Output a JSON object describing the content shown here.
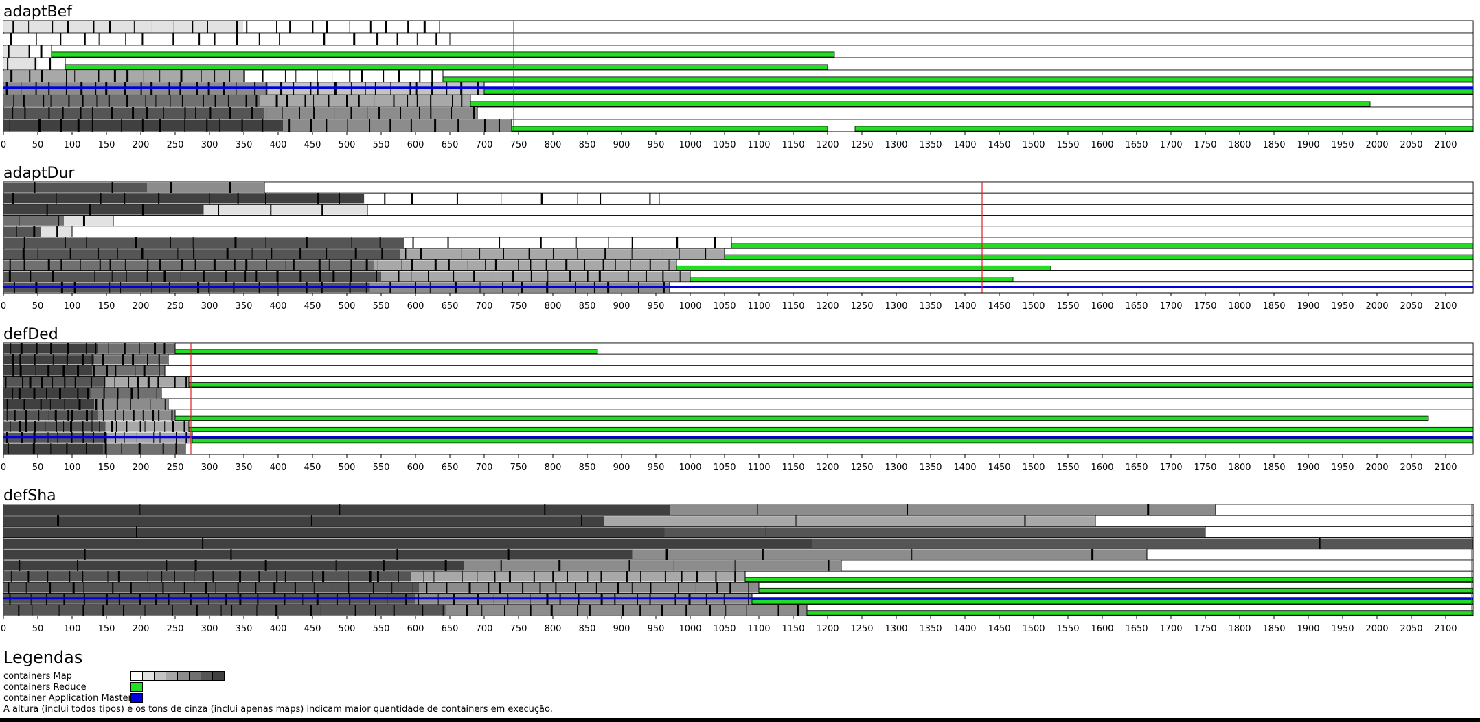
{
  "colors": {
    "map_shades": [
      "#ffffff",
      "#e2e2e2",
      "#c4c4c4",
      "#a8a8a8",
      "#8c8c8c",
      "#707070",
      "#555555",
      "#404040"
    ],
    "reduce": "#22dd22",
    "app_master": "#0000dd",
    "finish_line": "#e02020",
    "border": "#000000"
  },
  "chart_data": [
    {
      "type": "timeline",
      "title": "adaptBef",
      "xlim": [
        0,
        2140
      ],
      "x_ticks": [
        0,
        50,
        100,
        150,
        200,
        250,
        300,
        350,
        400,
        450,
        500,
        550,
        600,
        650,
        700,
        750,
        800,
        850,
        900,
        950,
        1000,
        1050,
        1100,
        1150,
        1200,
        1250,
        1300,
        1350,
        1400,
        1450,
        1500,
        1550,
        1600,
        1650,
        1700,
        1750,
        1800,
        1850,
        1900,
        1950,
        2000,
        2050,
        2100
      ],
      "finish_time": 743,
      "rows": [
        {
          "map_until": 635,
          "map_shade": 1,
          "map_shade_late": 0,
          "ticks": 22,
          "reduce": [],
          "am": []
        },
        {
          "map_until": 650,
          "map_shade": 0,
          "map_shade_late": 0,
          "ticks": 20,
          "reduce": [],
          "am": []
        },
        {
          "map_until": 70,
          "map_shade": 1,
          "map_shade_late": 0,
          "ticks": 3,
          "reduce": [
            [
              70,
              1210
            ]
          ],
          "am": []
        },
        {
          "map_until": 90,
          "map_shade": 1,
          "map_shade_late": 0,
          "ticks": 3,
          "reduce": [
            [
              90,
              1200
            ]
          ],
          "am": []
        },
        {
          "map_until": 640,
          "map_shade": 3,
          "map_shade_late": 0,
          "ticks": 26,
          "reduce": [
            [
              640,
              2140
            ]
          ],
          "am": []
        },
        {
          "map_until": 700,
          "map_shade": 4,
          "map_shade_late": 2,
          "ticks": 34,
          "reduce": [
            [
              700,
              2140
            ]
          ],
          "am": [
            [
              0,
              2140
            ]
          ]
        },
        {
          "map_until": 680,
          "map_shade": 5,
          "map_shade_late": 3,
          "ticks": 32,
          "reduce": [
            [
              680,
              1990
            ]
          ],
          "am": []
        },
        {
          "map_until": 690,
          "map_shade": 6,
          "map_shade_late": 4,
          "ticks": 28,
          "reduce": [],
          "am": []
        },
        {
          "map_until": 740,
          "map_shade": 7,
          "map_shade_late": 4,
          "ticks": 24,
          "reduce": [
            [
              740,
              1200
            ],
            [
              1240,
              2140
            ]
          ],
          "am": []
        }
      ]
    },
    {
      "type": "timeline",
      "title": "adaptDur",
      "xlim": [
        0,
        2140
      ],
      "x_ticks": [
        0,
        50,
        100,
        150,
        200,
        250,
        300,
        350,
        400,
        450,
        500,
        550,
        600,
        650,
        700,
        750,
        800,
        850,
        900,
        950,
        1000,
        1050,
        1100,
        1150,
        1200,
        1250,
        1300,
        1350,
        1400,
        1450,
        1500,
        1550,
        1600,
        1650,
        1700,
        1750,
        1800,
        1850,
        1900,
        1950,
        2000,
        2050,
        2100
      ],
      "finish_time": 1425,
      "rows": [
        {
          "map_until": 380,
          "map_shade": 6,
          "map_shade_late": 4,
          "ticks": 4,
          "reduce": [],
          "am": []
        },
        {
          "map_until": 955,
          "map_shade": 7,
          "map_shade_late": 0,
          "ticks": 18,
          "reduce": [],
          "am": []
        },
        {
          "map_until": 530,
          "map_shade": 7,
          "map_shade_late": 1,
          "ticks": 6,
          "reduce": [],
          "am": []
        },
        {
          "map_until": 160,
          "map_shade": 5,
          "map_shade_late": 1,
          "ticks": 3,
          "reduce": [],
          "am": []
        },
        {
          "map_until": 100,
          "map_shade": 6,
          "map_shade_late": 1,
          "ticks": 3,
          "reduce": [],
          "am": []
        },
        {
          "map_until": 1060,
          "map_shade": 6,
          "map_shade_late": 0,
          "ticks": 20,
          "reduce": [
            [
              1060,
              2140
            ]
          ],
          "am": []
        },
        {
          "map_until": 1050,
          "map_shade": 6,
          "map_shade_late": 3,
          "ticks": 28,
          "reduce": [
            [
              1050,
              2140
            ]
          ],
          "am": []
        },
        {
          "map_until": 980,
          "map_shade": 5,
          "map_shade_late": 3,
          "ticks": 40,
          "reduce": [
            [
              980,
              1525
            ]
          ],
          "am": []
        },
        {
          "map_until": 1000,
          "map_shade": 6,
          "map_shade_late": 3,
          "ticks": 36,
          "reduce": [
            [
              1000,
              1470
            ]
          ],
          "am": []
        },
        {
          "map_until": 970,
          "map_shade": 6,
          "map_shade_late": 4,
          "ticks": 30,
          "reduce": [],
          "am": [
            [
              0,
              2140
            ]
          ]
        }
      ]
    },
    {
      "type": "timeline",
      "title": "defDed",
      "xlim": [
        0,
        2140
      ],
      "x_ticks": [
        0,
        50,
        100,
        150,
        200,
        250,
        300,
        350,
        400,
        450,
        500,
        550,
        600,
        650,
        700,
        750,
        800,
        850,
        900,
        950,
        1000,
        1050,
        1100,
        1150,
        1200,
        1250,
        1300,
        1350,
        1400,
        1450,
        1500,
        1550,
        1600,
        1650,
        1700,
        1750,
        1800,
        1850,
        1900,
        1950,
        2000,
        2050,
        2100
      ],
      "finish_time": 273,
      "rows": [
        {
          "map_until": 250,
          "map_shade": 7,
          "map_shade_late": 5,
          "ticks": 12,
          "reduce": [
            [
              250,
              865
            ]
          ],
          "am": []
        },
        {
          "map_until": 240,
          "map_shade": 7,
          "map_shade_late": 5,
          "ticks": 12,
          "reduce": [],
          "am": []
        },
        {
          "map_until": 235,
          "map_shade": 7,
          "map_shade_late": 5,
          "ticks": 12,
          "reduce": [],
          "am": []
        },
        {
          "map_until": 270,
          "map_shade": 6,
          "map_shade_late": 3,
          "ticks": 16,
          "reduce": [
            [
              270,
              2140
            ]
          ],
          "am": []
        },
        {
          "map_until": 230,
          "map_shade": 7,
          "map_shade_late": 5,
          "ticks": 12,
          "reduce": [],
          "am": []
        },
        {
          "map_until": 240,
          "map_shade": 7,
          "map_shade_late": 4,
          "ticks": 12,
          "reduce": [],
          "am": []
        },
        {
          "map_until": 250,
          "map_shade": 6,
          "map_shade_late": 4,
          "ticks": 18,
          "reduce": [
            [
              250,
              2075
            ]
          ],
          "am": []
        },
        {
          "map_until": 270,
          "map_shade": 6,
          "map_shade_late": 3,
          "ticks": 20,
          "reduce": [
            [
              270,
              2140
            ]
          ],
          "am": []
        },
        {
          "map_until": 275,
          "map_shade": 6,
          "map_shade_late": 3,
          "ticks": 16,
          "reduce": [
            [
              275,
              2140
            ]
          ],
          "am": [
            [
              0,
              2140
            ]
          ]
        },
        {
          "map_until": 265,
          "map_shade": 7,
          "map_shade_late": 5,
          "ticks": 10,
          "reduce": [],
          "am": []
        }
      ]
    },
    {
      "type": "timeline",
      "title": "defSha",
      "xlim": [
        0,
        2140
      ],
      "x_ticks": [
        0,
        50,
        100,
        150,
        200,
        250,
        300,
        350,
        400,
        450,
        500,
        550,
        600,
        650,
        700,
        750,
        800,
        850,
        900,
        950,
        1000,
        1050,
        1100,
        1150,
        1200,
        1250,
        1300,
        1350,
        1400,
        1450,
        1500,
        1550,
        1600,
        1650,
        1700,
        1750,
        1800,
        1850,
        1900,
        1950,
        2000,
        2050,
        2100
      ],
      "finish_time": 2138,
      "rows": [
        {
          "map_until": 1765,
          "map_shade": 7,
          "map_shade_late": 4,
          "ticks": 6,
          "reduce": [],
          "am": []
        },
        {
          "map_until": 1590,
          "map_shade": 7,
          "map_shade_late": 3,
          "ticks": 5,
          "reduce": [],
          "am": []
        },
        {
          "map_until": 1750,
          "map_shade": 7,
          "map_shade_late": 6,
          "ticks": 2,
          "reduce": [],
          "am": []
        },
        {
          "map_until": 2140,
          "map_shade": 7,
          "map_shade_late": 6,
          "ticks": 2,
          "reduce": [],
          "am": []
        },
        {
          "map_until": 1665,
          "map_shade": 7,
          "map_shade_late": 4,
          "ticks": 8,
          "reduce": [],
          "am": []
        },
        {
          "map_until": 1220,
          "map_shade": 7,
          "map_shade_late": 4,
          "ticks": 14,
          "reduce": [],
          "am": []
        },
        {
          "map_until": 1080,
          "map_shade": 6,
          "map_shade_late": 3,
          "ticks": 40,
          "reduce": [
            [
              1080,
              2140
            ]
          ],
          "am": []
        },
        {
          "map_until": 1100,
          "map_shade": 6,
          "map_shade_late": 4,
          "ticks": 40,
          "reduce": [
            [
              1100,
              2140
            ]
          ],
          "am": []
        },
        {
          "map_until": 1090,
          "map_shade": 6,
          "map_shade_late": 4,
          "ticks": 42,
          "reduce": [
            [
              1090,
              2140
            ]
          ],
          "am": [
            [
              0,
              2140
            ]
          ]
        },
        {
          "map_until": 1170,
          "map_shade": 6,
          "map_shade_late": 4,
          "ticks": 36,
          "reduce": [
            [
              1170,
              2140
            ]
          ],
          "am": []
        }
      ]
    }
  ],
  "legend": {
    "heading": "Legendas",
    "map_label": "containers Map",
    "reduce_label": "containers Reduce",
    "am_label": "container Application Master",
    "note": "A altura (inclui todos tipos) e os tons de cinza (inclui apenas maps) indicam maior quantidade de containers em execução."
  }
}
